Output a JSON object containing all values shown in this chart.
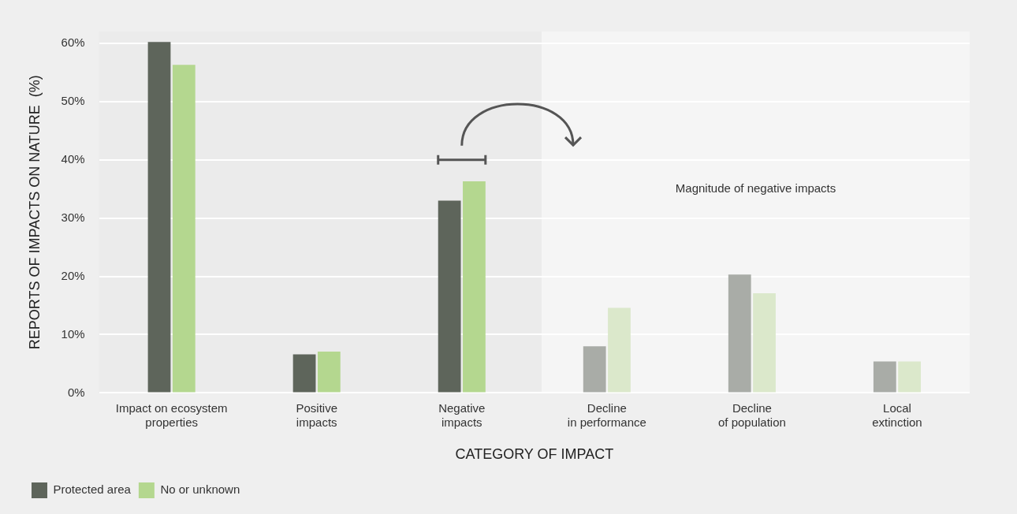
{
  "chart_data": {
    "type": "bar",
    "xlabel": "CATEGORY OF IMPACT",
    "ylabel": "REPORTS OF IMPACTS ON NATURE  (%)",
    "categories": [
      "Impact on ecosystem\nproperties",
      "Positive\nimpacts",
      "Negative\nimpacts",
      "Decline\nin performance",
      "Decline\nof population",
      "Local\nextinction"
    ],
    "series": [
      {
        "name": "Protected area",
        "color": "#5e655b",
        "colors": [
          "#5e655b",
          "#5e655b",
          "#5e655b",
          "#a9aca7",
          "#a9aca7",
          "#a9aca7"
        ],
        "values": [
          60.2,
          6.6,
          33,
          8,
          20.3,
          5.4
        ]
      },
      {
        "name": "No or unknown",
        "color": "#b4d78f",
        "colors": [
          "#b4d78f",
          "#b4d78f",
          "#b4d78f",
          "#dbe8cb",
          "#dbe8cb",
          "#dbe8cb"
        ],
        "values": [
          56.3,
          7.1,
          36.3,
          14.6,
          17.1,
          5.4
        ]
      }
    ],
    "ylim": [
      0,
      62
    ],
    "yticks": [
      {
        "value": 0,
        "label": "0%"
      },
      {
        "value": 10,
        "label": "10%"
      },
      {
        "value": 20,
        "label": "20%"
      },
      {
        "value": 30,
        "label": "30%"
      },
      {
        "value": 40,
        "label": "40%"
      },
      {
        "value": 50,
        "label": "50%"
      },
      {
        "value": 60,
        "label": "60%"
      }
    ],
    "grid": "y",
    "legend": "bottom",
    "bands": [
      {
        "axis": "x",
        "from": "Decline\nin performance",
        "to": "Local\nextinction",
        "label": "Magnitude of negative impacts",
        "color": "#f5f5f5"
      }
    ]
  }
}
